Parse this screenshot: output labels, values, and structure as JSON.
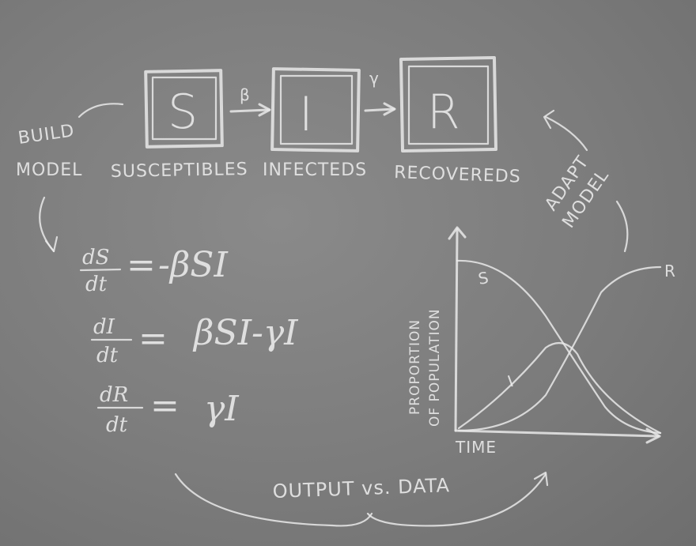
{
  "compartments": {
    "s": {
      "letter": "S",
      "label": "SUSCEPTIBLES"
    },
    "i": {
      "letter": "I",
      "label": "INFECTEDS"
    },
    "r": {
      "letter": "R",
      "label": "RECOVEREDS"
    }
  },
  "rates": {
    "beta": "β",
    "gamma": "γ"
  },
  "annotations": {
    "build_model_1": "BUILD",
    "build_model_2": "MODEL",
    "adapt_model_1": "ADAPT",
    "adapt_model_2": "MODEL",
    "output_vs_data": "OUTPUT vs. DATA"
  },
  "equations": {
    "s": {
      "num": "dS",
      "den": "dt",
      "rhs": "-βSI"
    },
    "i": {
      "num": "dI",
      "den": "dt",
      "rhs": "βSI-γI"
    },
    "r": {
      "num": "dR",
      "den": "dt",
      "rhs": "γI"
    }
  },
  "graph": {
    "y_label_1": "PROPORTION",
    "y_label_2": "OF POPULATION",
    "x_label": "TIME",
    "curve_s": "S",
    "curve_i": "I",
    "curve_r": "R"
  }
}
